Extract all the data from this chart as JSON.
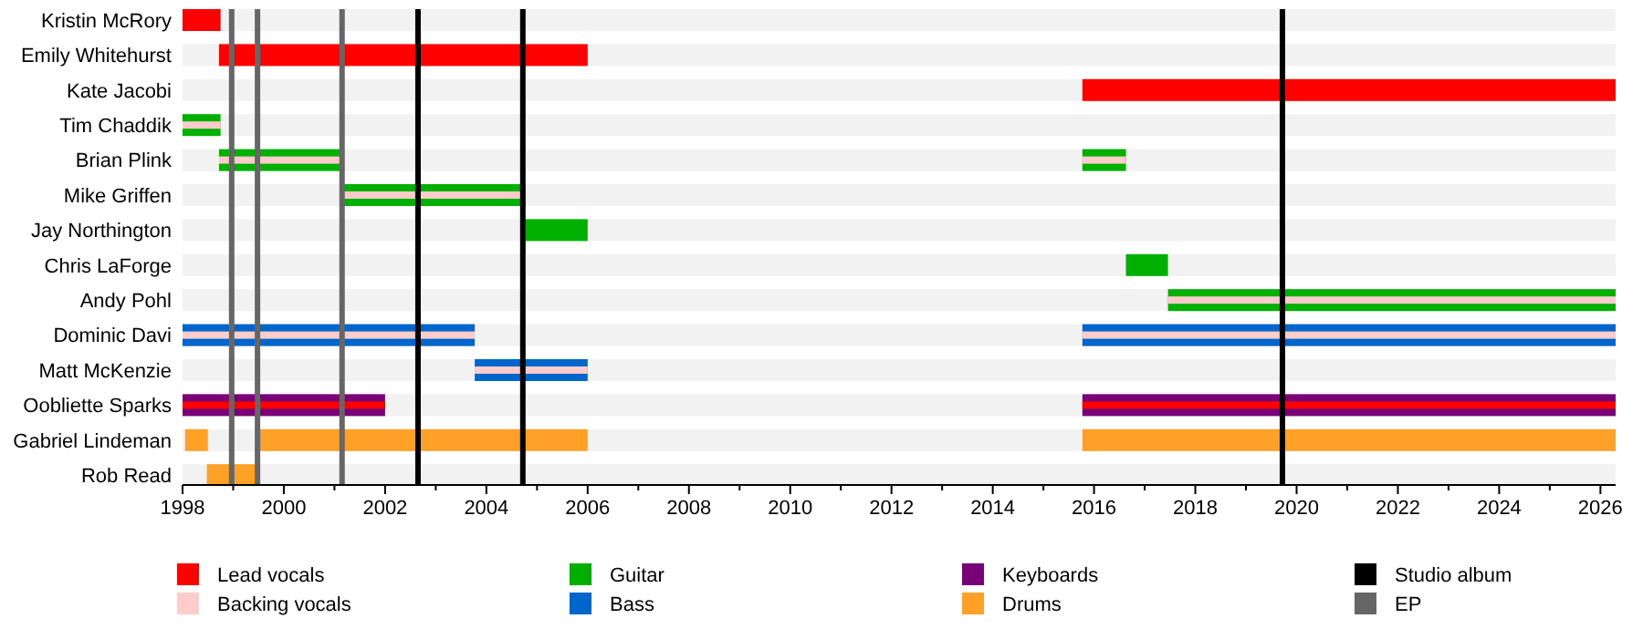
{
  "chart_data": {
    "type": "bar",
    "orientation": "horizontal",
    "categories": [
      "Kristin McRory",
      "Emily Whitehurst",
      "Kate Jacobi",
      "Tim Chaddik",
      "Brian Plink",
      "Mike Griffen",
      "Jay Northington",
      "Chris LaForge",
      "Andy Pohl",
      "Dominic Davi",
      "Matt McKenzie",
      "Oobliette Sparks",
      "Gabriel Lindeman",
      "Rob Read"
    ],
    "xlim": [
      1998,
      2026.3
    ],
    "xticks": [
      1998,
      {
        "value": 1999,
        "label": null
      },
      2000,
      {
        "value": 2001,
        "label": null
      },
      2002,
      {
        "value": 2003,
        "label": null
      },
      2004,
      {
        "value": 2005,
        "label": null
      },
      2006,
      {
        "value": 2007,
        "label": null
      },
      2008,
      {
        "value": 2009,
        "label": null
      },
      2010,
      {
        "value": 2011,
        "label": null
      },
      2012,
      {
        "value": 2013,
        "label": null
      },
      2014,
      {
        "value": 2015,
        "label": null
      },
      2016,
      {
        "value": 2017,
        "label": null
      },
      2018,
      {
        "value": 2019,
        "label": null
      },
      2020,
      {
        "value": 2021,
        "label": null
      },
      2022,
      {
        "value": 2023,
        "label": null
      },
      2024,
      {
        "value": 2025,
        "label": null
      },
      2026
    ],
    "grid": false,
    "legend": "bottom",
    "series": [
      {
        "name": "Lead vocals",
        "color": "#ff0000",
        "base": [
          1998,
          1998.72,
          2015.77,
          null,
          null,
          null,
          null,
          null,
          null,
          null,
          null,
          1998,
          null,
          null
        ],
        "values": [
          0.75,
          7.28,
          10.53,
          null,
          null,
          null,
          null,
          null,
          null,
          null,
          null,
          4.0,
          null,
          null
        ]
      },
      {
        "name": "Backing vocals",
        "color": "#ffcccc",
        "base": [
          null,
          null,
          null,
          1998,
          1998.72,
          2001.17,
          null,
          null,
          2017.46,
          1998,
          2003.77,
          null,
          null,
          null
        ],
        "values": [
          null,
          null,
          null,
          0.75,
          2.45,
          3.6,
          null,
          null,
          8.84,
          5.77,
          2.23,
          null,
          null,
          null
        ]
      },
      {
        "name": "Guitar",
        "color": "#00b000",
        "base": [
          null,
          null,
          null,
          1998,
          1998.72,
          2001.17,
          2004.77,
          2016.63,
          2017.46,
          null,
          null,
          null,
          null,
          null
        ],
        "values": [
          null,
          null,
          null,
          0.75,
          2.45,
          3.6,
          1.23,
          0.83,
          8.84,
          null,
          null,
          null,
          null,
          null
        ]
      },
      {
        "name": "Bass",
        "color": "#0066cc",
        "base": [
          null,
          null,
          null,
          null,
          null,
          null,
          null,
          null,
          null,
          1998,
          2003.77,
          null,
          null,
          null
        ],
        "values": [
          null,
          null,
          null,
          null,
          null,
          null,
          null,
          null,
          null,
          5.77,
          2.23,
          null,
          null,
          null
        ]
      },
      {
        "name": "Keyboards",
        "color": "#7a0077",
        "base": [
          null,
          null,
          null,
          null,
          null,
          null,
          null,
          null,
          null,
          null,
          null,
          1998,
          null,
          null
        ],
        "values": [
          null,
          null,
          null,
          null,
          null,
          null,
          null,
          null,
          null,
          null,
          null,
          4.0,
          null,
          null
        ]
      },
      {
        "name": "Drums",
        "color": "#ffa126",
        "base": [
          null,
          null,
          null,
          null,
          null,
          null,
          null,
          null,
          null,
          null,
          null,
          null,
          1998.05,
          1998.48
        ],
        "values": [
          null,
          null,
          null,
          null,
          null,
          null,
          null,
          null,
          null,
          null,
          null,
          null,
          0.45,
          1.0
        ]
      },
      {
        "color": "#ff0000",
        "base": [
          null,
          null,
          null,
          null,
          null,
          null,
          null,
          null,
          null,
          null,
          null,
          2015.77,
          null,
          null
        ],
        "values": [
          null,
          null,
          null,
          null,
          null,
          null,
          null,
          null,
          null,
          null,
          null,
          10.53,
          null,
          null
        ]
      },
      {
        "color": "#ffcccc",
        "base": [
          null,
          null,
          null,
          null,
          2015.77,
          null,
          null,
          null,
          null,
          2015.77,
          null,
          null,
          null,
          null
        ],
        "values": [
          null,
          null,
          null,
          null,
          0.86,
          null,
          null,
          null,
          null,
          10.53,
          null,
          null,
          null,
          null
        ]
      },
      {
        "color": "#00b000",
        "base": [
          null,
          null,
          null,
          null,
          2015.77,
          null,
          null,
          null,
          null,
          null,
          null,
          null,
          null,
          null
        ],
        "values": [
          null,
          null,
          null,
          null,
          0.86,
          null,
          null,
          null,
          null,
          null,
          null,
          null,
          null,
          null
        ]
      },
      {
        "color": "#0066cc",
        "base": [
          null,
          null,
          null,
          null,
          null,
          null,
          null,
          null,
          null,
          2015.77,
          null,
          null,
          null,
          null
        ],
        "values": [
          null,
          null,
          null,
          null,
          null,
          null,
          null,
          null,
          null,
          10.53,
          null,
          null,
          null,
          null
        ]
      },
      {
        "color": "#7a0077",
        "base": [
          null,
          null,
          null,
          null,
          null,
          null,
          null,
          null,
          null,
          null,
          null,
          2015.77,
          null,
          null
        ],
        "values": [
          null,
          null,
          null,
          null,
          null,
          null,
          null,
          null,
          null,
          null,
          null,
          10.53,
          null,
          null
        ]
      },
      {
        "color": "#ffa126",
        "base": [
          null,
          null,
          null,
          null,
          null,
          null,
          null,
          null,
          null,
          null,
          null,
          null,
          1999.48,
          null
        ],
        "values": [
          null,
          null,
          null,
          null,
          null,
          null,
          null,
          null,
          null,
          null,
          null,
          null,
          6.52,
          null
        ]
      },
      {
        "color": "#ffa126",
        "base": [
          null,
          null,
          null,
          null,
          null,
          null,
          null,
          null,
          null,
          null,
          null,
          null,
          2015.77,
          null
        ],
        "values": [
          null,
          null,
          null,
          null,
          null,
          null,
          null,
          null,
          null,
          null,
          null,
          null,
          10.53,
          null
        ]
      }
    ],
    "ref_lines": [
      {
        "axis": "x",
        "value": 2002.65,
        "label": "Studio album",
        "color": "#000000"
      },
      {
        "axis": "x",
        "value": 2004.72,
        "color": "#000000"
      },
      {
        "axis": "x",
        "value": 2019.72,
        "color": "#000000"
      },
      {
        "axis": "x",
        "value": 1998.97,
        "label": "EP",
        "color": "#666666"
      },
      {
        "axis": "x",
        "value": 1999.48,
        "color": "#666666"
      },
      {
        "axis": "x",
        "value": 2001.15,
        "color": "#666666"
      }
    ]
  }
}
